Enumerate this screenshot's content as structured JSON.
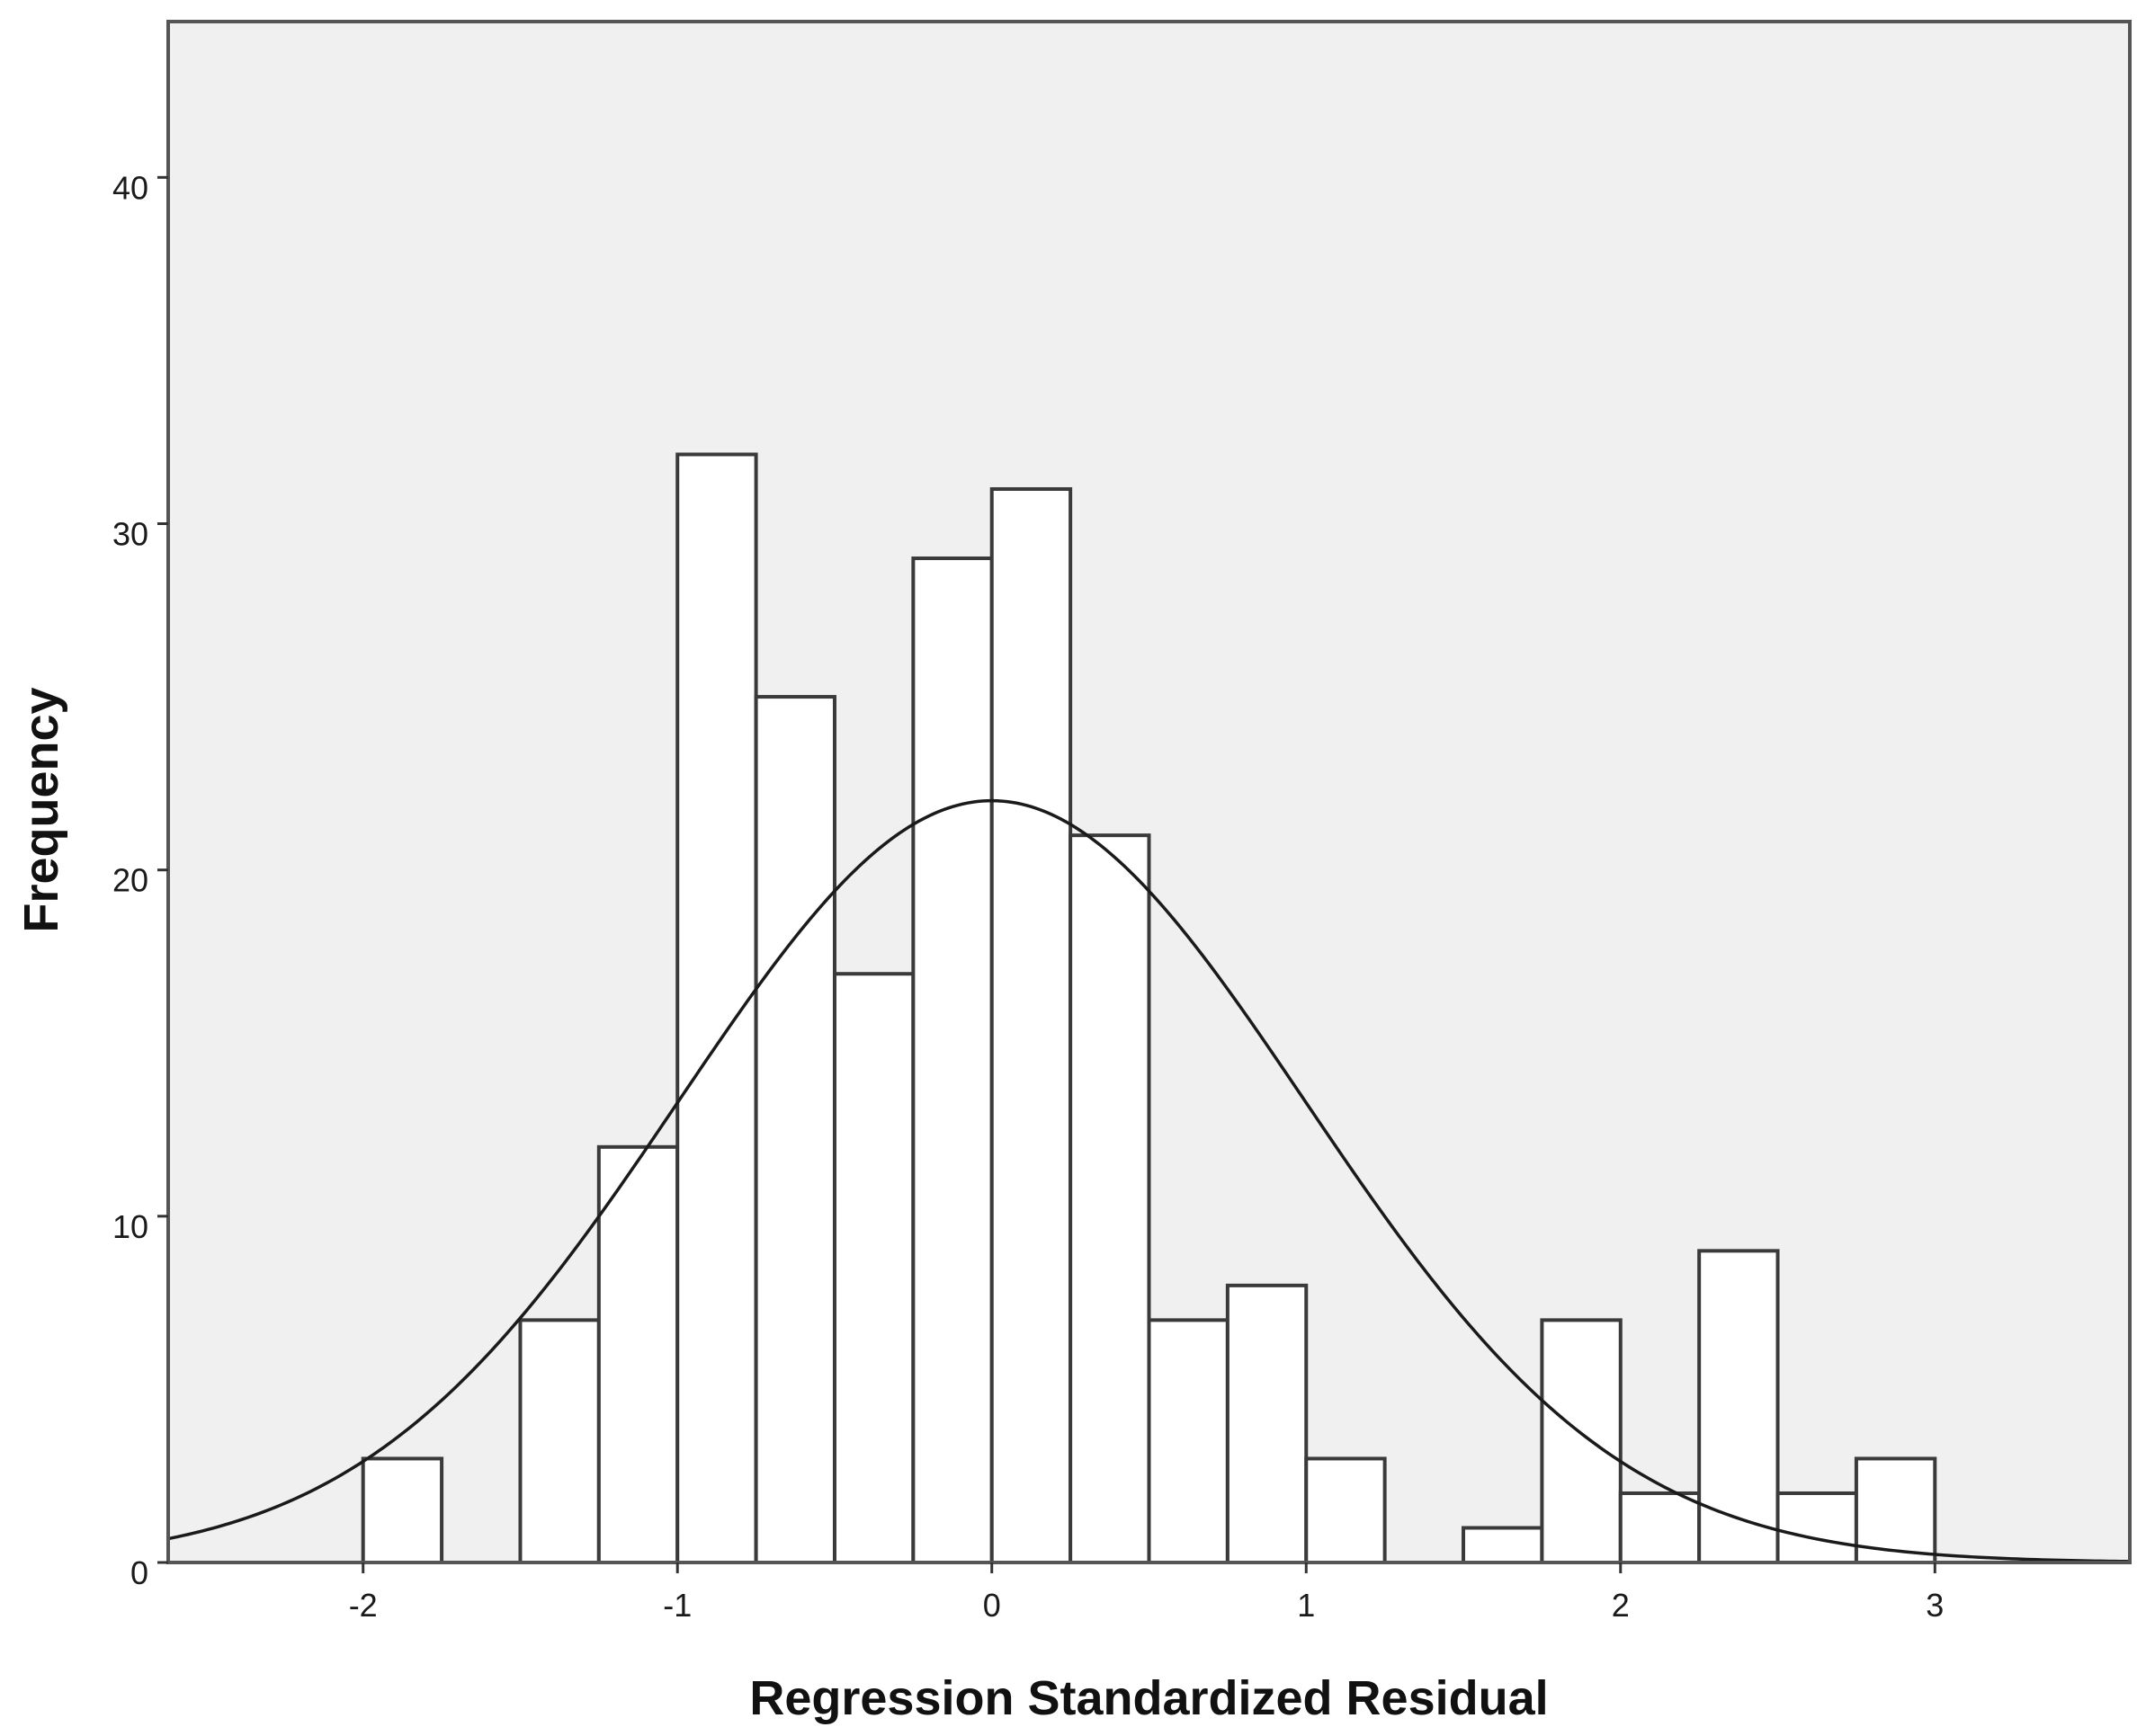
{
  "chart_data": {
    "type": "bar",
    "subtype": "histogram",
    "title": "",
    "xlabel": "Regression Standardized Residual",
    "ylabel": "Frequency",
    "xlim": [
      -2.62,
      3.62
    ],
    "ylim": [
      0,
      44.5
    ],
    "x_ticks": [
      -2,
      -1,
      0,
      1,
      2,
      3
    ],
    "x_tick_labels": [
      "-2",
      "-1",
      "0",
      "1",
      "2",
      "3"
    ],
    "y_ticks": [
      0,
      10,
      20,
      30,
      40
    ],
    "y_tick_labels": [
      "0",
      "10",
      "20",
      "30",
      "40"
    ],
    "bin_width": 0.25,
    "bins": [
      {
        "x0": -2.0,
        "x1": -1.75,
        "count": 3
      },
      {
        "x0": -1.5,
        "x1": -1.25,
        "count": 7
      },
      {
        "x0": -1.25,
        "x1": -1.0,
        "count": 12
      },
      {
        "x0": -1.0,
        "x1": -0.75,
        "count": 32
      },
      {
        "x0": -0.75,
        "x1": -0.5,
        "count": 25
      },
      {
        "x0": -0.5,
        "x1": -0.25,
        "count": 17
      },
      {
        "x0": -0.25,
        "x1": 0.0,
        "count": 29
      },
      {
        "x0": 0.0,
        "x1": 0.25,
        "count": 31
      },
      {
        "x0": 0.25,
        "x1": 0.5,
        "count": 21
      },
      {
        "x0": 0.5,
        "x1": 0.75,
        "count": 7
      },
      {
        "x0": 0.75,
        "x1": 1.0,
        "count": 8
      },
      {
        "x0": 1.0,
        "x1": 1.25,
        "count": 3
      },
      {
        "x0": 1.5,
        "x1": 1.75,
        "count": 1
      },
      {
        "x0": 1.75,
        "x1": 2.0,
        "count": 7
      },
      {
        "x0": 2.0,
        "x1": 2.25,
        "count": 2
      },
      {
        "x0": 2.25,
        "x1": 2.5,
        "count": 9
      },
      {
        "x0": 2.5,
        "x1": 2.75,
        "count": 2
      },
      {
        "x0": 2.75,
        "x1": 3.0,
        "count": 3
      }
    ],
    "normal_curve": {
      "mean": 0.0,
      "std_dev": 0.995,
      "peak": 22
    },
    "grid": false,
    "legend": "none",
    "colors": {
      "plot_background": "#f0f0f0",
      "bar_fill": "#ffffff",
      "bar_edge": "#3a3a3a",
      "curve": "#1a1a1a",
      "frame": "#555555"
    }
  }
}
